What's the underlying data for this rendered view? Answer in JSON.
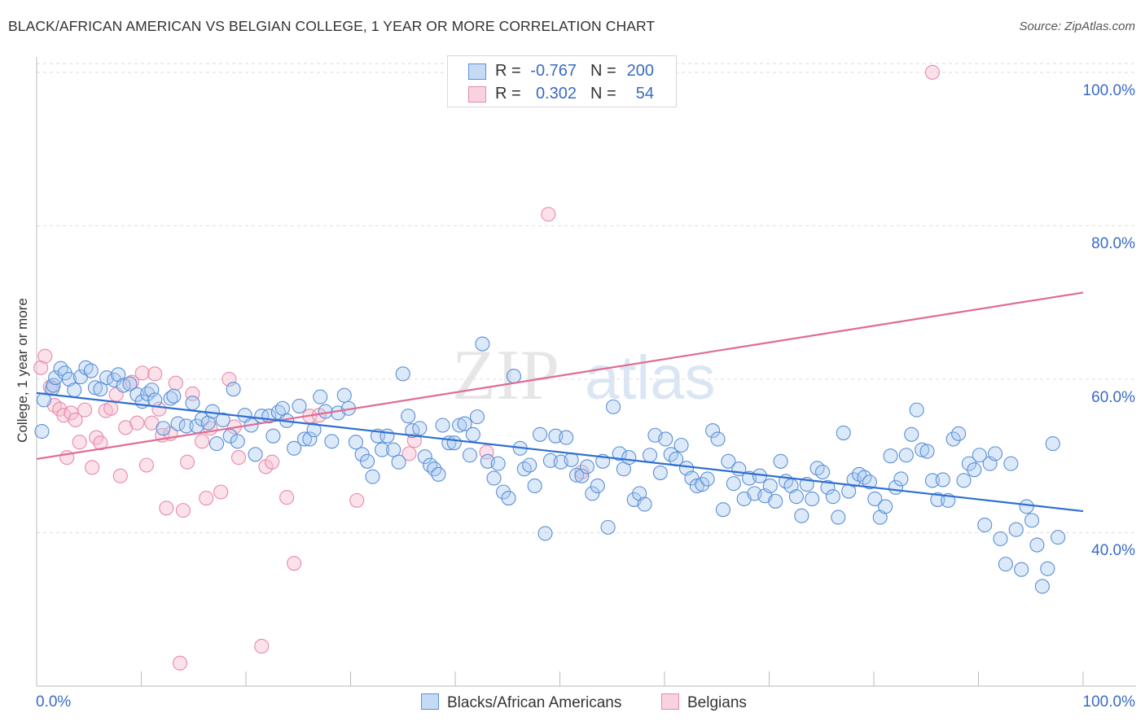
{
  "title": "BLACK/AFRICAN AMERICAN VS BELGIAN COLLEGE, 1 YEAR OR MORE CORRELATION CHART",
  "source": "Source: ZipAtlas.com",
  "watermark": {
    "zip": "ZIP",
    "atlas": "atlas"
  },
  "colors": {
    "blue_fill": "#a8c8f0",
    "blue_stroke": "#5b8fd6",
    "blue_line": "#2f6fd1",
    "pink_fill": "#f6bccf",
    "pink_stroke": "#e88aa8",
    "pink_line": "#e06b93",
    "axis_text": "#3a6bc4",
    "grid": "#dddddd"
  },
  "stats": [
    {
      "r_label": "R =",
      "r_value": "-0.767",
      "n_label": "N =",
      "n_value": "200"
    },
    {
      "r_label": "R =",
      "r_value": "0.302",
      "n_label": "N =",
      "n_value": "54"
    }
  ],
  "chart_data": {
    "type": "scatter",
    "xlabel": "",
    "ylabel": "College, 1 year or more",
    "xlim": [
      0,
      100
    ],
    "ylim": [
      20,
      102
    ],
    "x_tick_labels": {
      "left": "0.0%",
      "right": "100.0%"
    },
    "y_ticks": [
      40,
      60,
      80,
      100
    ],
    "y_tick_labels": [
      "40.0%",
      "60.0%",
      "80.0%",
      "100.0%"
    ],
    "grid": "horizontal dashed",
    "legend_position": "bottom-center",
    "series": [
      {
        "name": "Blacks/African Americans",
        "color": "#5b8fd6",
        "trend": {
          "x": [
            0,
            100
          ],
          "y": [
            58.2,
            42.8
          ]
        },
        "points": [
          [
            0.5,
            53.2
          ],
          [
            0.7,
            57.3
          ],
          [
            1.5,
            58.8
          ],
          [
            1.6,
            59.2
          ],
          [
            1.8,
            60.2
          ],
          [
            2.3,
            61.4
          ],
          [
            2.7,
            60.8
          ],
          [
            3.1,
            60.0
          ],
          [
            3.6,
            58.6
          ],
          [
            4.2,
            60.3
          ],
          [
            4.7,
            61.5
          ],
          [
            5.2,
            61.1
          ],
          [
            5.6,
            58.9
          ],
          [
            6.1,
            58.7
          ],
          [
            6.7,
            60.2
          ],
          [
            7.4,
            59.9
          ],
          [
            7.8,
            60.6
          ],
          [
            8.3,
            59.2
          ],
          [
            8.9,
            59.4
          ],
          [
            9.6,
            58.0
          ],
          [
            10.1,
            57.1
          ],
          [
            10.6,
            58.1
          ],
          [
            11.0,
            58.6
          ],
          [
            11.3,
            57.3
          ],
          [
            12.1,
            53.6
          ],
          [
            12.8,
            57.5
          ],
          [
            13.1,
            57.8
          ],
          [
            13.5,
            54.2
          ],
          [
            14.3,
            53.9
          ],
          [
            14.9,
            56.9
          ],
          [
            15.3,
            53.9
          ],
          [
            15.8,
            54.8
          ],
          [
            16.4,
            54.3
          ],
          [
            16.8,
            55.8
          ],
          [
            17.2,
            51.6
          ],
          [
            17.8,
            54.7
          ],
          [
            18.5,
            52.6
          ],
          [
            18.8,
            58.7
          ],
          [
            19.2,
            51.9
          ],
          [
            19.9,
            55.3
          ],
          [
            20.5,
            54.0
          ],
          [
            20.9,
            50.2
          ],
          [
            21.5,
            55.2
          ],
          [
            22.2,
            55.2
          ],
          [
            22.6,
            52.6
          ],
          [
            23.1,
            55.7
          ],
          [
            23.5,
            56.2
          ],
          [
            23.9,
            54.6
          ],
          [
            24.6,
            51.0
          ],
          [
            25.1,
            56.5
          ],
          [
            25.6,
            52.2
          ],
          [
            26.1,
            52.2
          ],
          [
            26.5,
            53.4
          ],
          [
            27.1,
            57.7
          ],
          [
            27.6,
            55.8
          ],
          [
            28.2,
            51.9
          ],
          [
            28.8,
            55.6
          ],
          [
            29.4,
            57.9
          ],
          [
            29.8,
            56.2
          ],
          [
            30.5,
            51.8
          ],
          [
            31.1,
            50.2
          ],
          [
            31.6,
            49.3
          ],
          [
            32.1,
            47.3
          ],
          [
            32.6,
            52.6
          ],
          [
            33.0,
            50.8
          ],
          [
            33.5,
            52.6
          ],
          [
            34.1,
            50.8
          ],
          [
            34.6,
            49.2
          ],
          [
            35.0,
            60.7
          ],
          [
            35.5,
            55.2
          ],
          [
            35.9,
            53.3
          ],
          [
            36.6,
            53.6
          ],
          [
            37.1,
            49.9
          ],
          [
            37.6,
            48.8
          ],
          [
            38.0,
            48.3
          ],
          [
            38.4,
            47.6
          ],
          [
            38.8,
            54.0
          ],
          [
            39.4,
            51.7
          ],
          [
            39.9,
            51.7
          ],
          [
            40.4,
            54.0
          ],
          [
            40.9,
            54.2
          ],
          [
            41.4,
            50.1
          ],
          [
            41.7,
            52.8
          ],
          [
            42.1,
            55.1
          ],
          [
            42.6,
            64.6
          ],
          [
            43.1,
            49.3
          ],
          [
            43.7,
            47.1
          ],
          [
            44.1,
            49.0
          ],
          [
            44.6,
            45.3
          ],
          [
            45.1,
            44.5
          ],
          [
            45.6,
            60.4
          ],
          [
            46.2,
            51.0
          ],
          [
            46.6,
            48.3
          ],
          [
            47.1,
            48.8
          ],
          [
            47.6,
            46.1
          ],
          [
            48.1,
            52.8
          ],
          [
            48.6,
            39.9
          ],
          [
            49.1,
            49.4
          ],
          [
            49.6,
            52.6
          ],
          [
            50.1,
            49.2
          ],
          [
            50.6,
            52.4
          ],
          [
            51.1,
            49.5
          ],
          [
            51.6,
            47.5
          ],
          [
            52.1,
            47.4
          ],
          [
            52.6,
            48.6
          ],
          [
            53.1,
            45.1
          ],
          [
            53.6,
            46.1
          ],
          [
            54.1,
            49.3
          ],
          [
            54.6,
            40.7
          ],
          [
            55.1,
            56.4
          ],
          [
            55.7,
            50.3
          ],
          [
            56.1,
            48.3
          ],
          [
            56.6,
            49.8
          ],
          [
            57.1,
            44.3
          ],
          [
            57.6,
            45.1
          ],
          [
            58.1,
            43.7
          ],
          [
            58.6,
            50.1
          ],
          [
            59.1,
            52.7
          ],
          [
            59.6,
            47.8
          ],
          [
            60.1,
            52.2
          ],
          [
            60.6,
            50.2
          ],
          [
            61.1,
            49.6
          ],
          [
            61.6,
            51.4
          ],
          [
            62.1,
            48.4
          ],
          [
            62.6,
            47.1
          ],
          [
            63.1,
            46.1
          ],
          [
            63.6,
            46.3
          ],
          [
            64.1,
            47.0
          ],
          [
            64.6,
            53.3
          ],
          [
            65.1,
            52.2
          ],
          [
            65.6,
            43.0
          ],
          [
            66.1,
            49.3
          ],
          [
            66.6,
            46.4
          ],
          [
            67.1,
            48.3
          ],
          [
            67.6,
            44.4
          ],
          [
            68.1,
            47.1
          ],
          [
            68.6,
            45.1
          ],
          [
            69.1,
            47.4
          ],
          [
            69.6,
            44.8
          ],
          [
            70.1,
            46.1
          ],
          [
            70.6,
            44.1
          ],
          [
            71.1,
            49.3
          ],
          [
            71.6,
            46.7
          ],
          [
            72.1,
            46.1
          ],
          [
            72.6,
            44.7
          ],
          [
            73.1,
            42.2
          ],
          [
            73.6,
            46.3
          ],
          [
            74.1,
            44.4
          ],
          [
            74.6,
            48.4
          ],
          [
            75.1,
            47.9
          ],
          [
            75.6,
            45.9
          ],
          [
            76.1,
            44.7
          ],
          [
            76.6,
            42.0
          ],
          [
            77.1,
            53.0
          ],
          [
            77.6,
            45.4
          ],
          [
            78.1,
            46.9
          ],
          [
            78.6,
            47.6
          ],
          [
            79.1,
            47.2
          ],
          [
            79.6,
            46.6
          ],
          [
            80.1,
            44.4
          ],
          [
            80.6,
            42.0
          ],
          [
            81.1,
            43.4
          ],
          [
            81.6,
            50.0
          ],
          [
            82.1,
            45.9
          ],
          [
            82.6,
            47.0
          ],
          [
            83.1,
            50.1
          ],
          [
            83.6,
            52.8
          ],
          [
            84.1,
            56.0
          ],
          [
            84.6,
            50.8
          ],
          [
            85.1,
            50.6
          ],
          [
            85.6,
            46.8
          ],
          [
            86.1,
            44.3
          ],
          [
            86.6,
            46.9
          ],
          [
            87.1,
            44.2
          ],
          [
            87.6,
            52.2
          ],
          [
            88.1,
            52.9
          ],
          [
            88.6,
            46.8
          ],
          [
            89.1,
            49.0
          ],
          [
            89.6,
            48.2
          ],
          [
            90.1,
            50.1
          ],
          [
            90.6,
            41.0
          ],
          [
            91.1,
            49.0
          ],
          [
            91.6,
            50.3
          ],
          [
            92.1,
            39.2
          ],
          [
            92.6,
            35.9
          ],
          [
            93.1,
            49.0
          ],
          [
            93.6,
            40.4
          ],
          [
            94.1,
            35.2
          ],
          [
            94.6,
            43.4
          ],
          [
            95.1,
            41.6
          ],
          [
            95.6,
            38.4
          ],
          [
            96.1,
            33.0
          ],
          [
            96.6,
            35.3
          ],
          [
            97.1,
            51.6
          ],
          [
            97.6,
            39.4
          ]
        ]
      },
      {
        "name": "Belgians",
        "color": "#e88aa8",
        "trend": {
          "x": [
            0,
            100
          ],
          "y": [
            49.6,
            71.3
          ]
        },
        "points": [
          [
            0.4,
            61.5
          ],
          [
            0.8,
            63.0
          ],
          [
            1.3,
            59.0
          ],
          [
            1.7,
            56.6
          ],
          [
            2.2,
            56.1
          ],
          [
            2.6,
            55.3
          ],
          [
            2.9,
            49.8
          ],
          [
            3.3,
            55.6
          ],
          [
            3.7,
            54.7
          ],
          [
            4.1,
            51.8
          ],
          [
            4.6,
            56.0
          ],
          [
            5.3,
            48.5
          ],
          [
            5.7,
            52.4
          ],
          [
            6.1,
            51.7
          ],
          [
            6.6,
            55.9
          ],
          [
            7.1,
            56.2
          ],
          [
            7.6,
            58.0
          ],
          [
            8.0,
            47.4
          ],
          [
            8.5,
            53.7
          ],
          [
            9.1,
            59.6
          ],
          [
            9.6,
            54.3
          ],
          [
            10.1,
            60.8
          ],
          [
            10.5,
            48.8
          ],
          [
            11.0,
            54.3
          ],
          [
            11.3,
            60.7
          ],
          [
            11.7,
            56.1
          ],
          [
            12.0,
            52.7
          ],
          [
            12.4,
            43.2
          ],
          [
            12.8,
            52.9
          ],
          [
            13.3,
            59.5
          ],
          [
            13.7,
            23.0
          ],
          [
            14.0,
            42.9
          ],
          [
            14.4,
            49.2
          ],
          [
            14.9,
            58.1
          ],
          [
            15.8,
            51.9
          ],
          [
            16.2,
            44.5
          ],
          [
            16.6,
            53.6
          ],
          [
            17.6,
            45.3
          ],
          [
            18.4,
            60.0
          ],
          [
            18.9,
            53.8
          ],
          [
            19.3,
            49.8
          ],
          [
            21.5,
            25.2
          ],
          [
            21.9,
            48.6
          ],
          [
            22.5,
            49.2
          ],
          [
            23.9,
            44.6
          ],
          [
            24.6,
            36.0
          ],
          [
            26.1,
            55.2
          ],
          [
            27.0,
            55.3
          ],
          [
            30.6,
            44.2
          ],
          [
            35.6,
            50.3
          ],
          [
            36.1,
            52.0
          ],
          [
            43.0,
            50.5
          ],
          [
            48.9,
            81.5
          ],
          [
            52.1,
            47.9
          ],
          [
            85.6,
            100.0
          ]
        ]
      }
    ]
  },
  "legend": [
    {
      "label": "Blacks/African Americans",
      "fill": "#c5daf5",
      "stroke": "#5b8fd6"
    },
    {
      "label": "Belgians",
      "fill": "#f9d2df",
      "stroke": "#e88aa8"
    }
  ]
}
